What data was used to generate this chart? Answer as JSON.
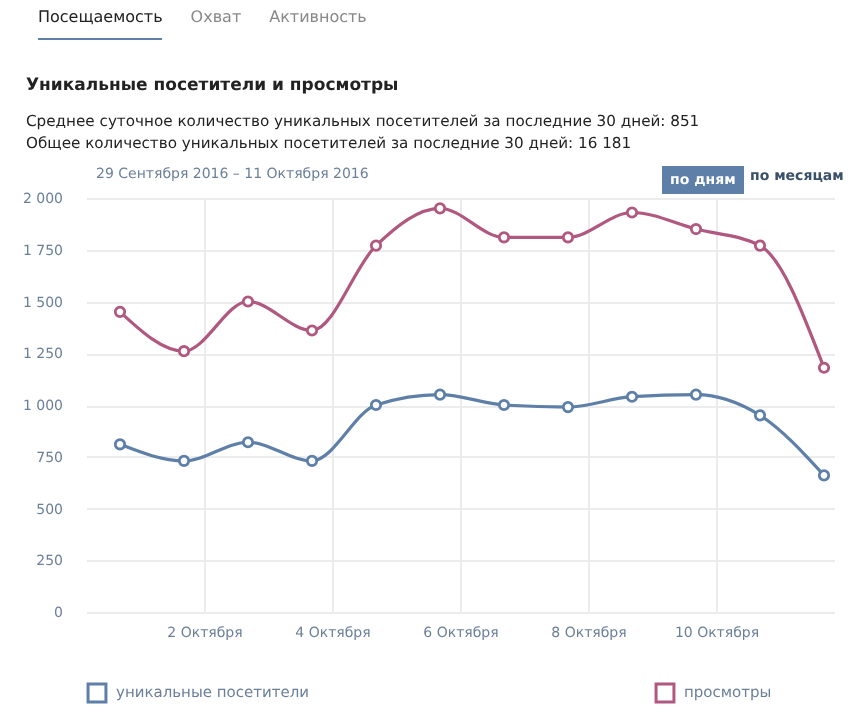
{
  "chart_data": {
    "type": "line",
    "title": "Уникальные посетители и просмотры",
    "annotations": [
      "Посещаемость",
      "Охват",
      "Активность",
      "Среднее суточное количество уникальных посетителей за последние 30 дней: 851",
      "Общее количество уникальных посетителей за последние 30 дней: 16 181",
      "29 Сентября 2016 – 11 Октября 2016",
      "по дням",
      "по месяцам"
    ],
    "x": [
      "2016-09-30T16:30",
      "2016-10-01T16:30",
      "2016-10-02T16:30",
      "2016-10-03T16:30",
      "2016-10-04T16:30",
      "2016-10-05T16:30",
      "2016-10-06T16:30",
      "2016-10-07T16:30",
      "2016-10-08T16:30",
      "2016-10-09T16:30",
      "2016-10-10T16:30",
      "2016-10-11T16:30"
    ],
    "series": [
      {
        "name": "уникальные посетители",
        "color": "#5d7fa8",
        "values": [
          810,
          730,
          820,
          730,
          1000,
          1050,
          1000,
          990,
          1040,
          1050,
          950,
          660
        ]
      },
      {
        "name": "просмотры",
        "color": "#b0587f",
        "values": [
          1450,
          1260,
          1500,
          1360,
          1770,
          1950,
          1810,
          1810,
          1930,
          1850,
          1770,
          1180
        ]
      }
    ],
    "xlim": [
      "2016-09-30T03:45",
      "2016-10-11T20:15"
    ],
    "xticks": [
      {
        "value": "2016-10-02",
        "label": "2 Октября"
      },
      {
        "value": "2016-10-04",
        "label": "4 Октября"
      },
      {
        "value": "2016-10-06",
        "label": "6 Октября"
      },
      {
        "value": "2016-10-08",
        "label": "8 Октября"
      },
      {
        "value": "2016-10-10",
        "label": "10 Октября"
      }
    ],
    "ylim": [
      0,
      2000
    ],
    "yticks": [
      0,
      250,
      500,
      750,
      {
        "value": 1000,
        "label": "1 000"
      },
      {
        "value": 1250,
        "label": "1 250"
      },
      {
        "value": 1500,
        "label": "1 500"
      },
      {
        "value": 1750,
        "label": "1 750"
      },
      {
        "value": 2000,
        "label": "2 000"
      }
    ],
    "grid": true,
    "legend": "bottom",
    "marker": "circle",
    "line_style": "solid"
  }
}
